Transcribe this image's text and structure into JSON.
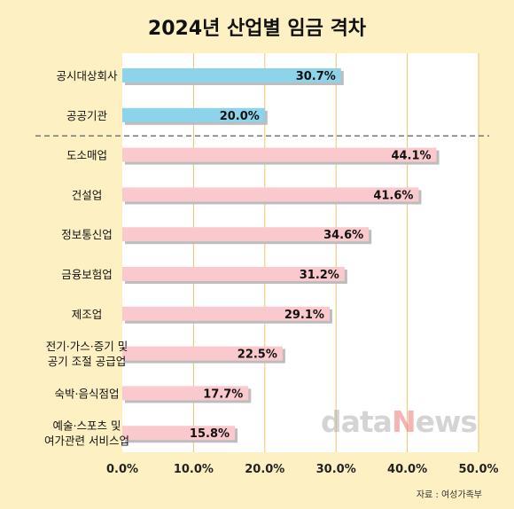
{
  "chart_data": {
    "type": "bar",
    "orientation": "horizontal",
    "title": "2024년 산업별 임금 격차",
    "categories": [
      [
        "공시대상회사"
      ],
      [
        "공공기관"
      ],
      [
        "도소매업"
      ],
      [
        "건설업"
      ],
      [
        "정보통신업"
      ],
      [
        "금융보험업"
      ],
      [
        "제조업"
      ],
      [
        "전기·가스·증기 및",
        "공기 조절 공급업"
      ],
      [
        "숙박·음식점업"
      ],
      [
        "예술·스포츠 및",
        "여가관련 서비스업"
      ]
    ],
    "values": [
      30.7,
      20.0,
      44.1,
      41.6,
      34.6,
      31.2,
      29.1,
      22.5,
      17.7,
      15.8
    ],
    "value_labels": [
      "30.7%",
      "20.0%",
      "44.1%",
      "41.6%",
      "34.6%",
      "31.2%",
      "29.1%",
      "22.5%",
      "17.7%",
      "15.8%"
    ],
    "xlim": [
      0,
      50
    ],
    "xticks": [
      "0.0%",
      "10.0%",
      "20.0%",
      "30.0%",
      "40.0%",
      "50.0%"
    ],
    "grid": true,
    "separator_after_index": 1,
    "colors": {
      "group_a": "#8dd3ea",
      "group_b": "#f9c9cd",
      "background": "#fdf1c4",
      "plot_background": "#ffffff",
      "gridline": "#e8c770",
      "shadow": "#bdbdbd",
      "separator": "#777777"
    }
  },
  "source": "자료 : 여성가족부",
  "watermark": {
    "part1": "data",
    "part2": "N",
    "part3": "ews"
  }
}
